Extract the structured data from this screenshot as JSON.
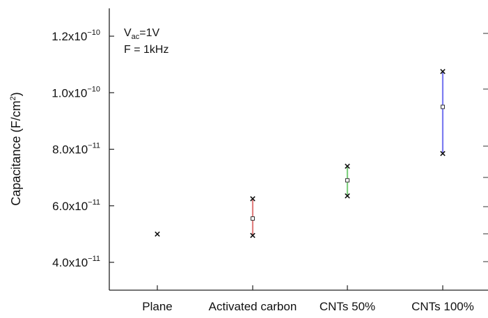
{
  "chart_data": {
    "type": "scatter",
    "title": "",
    "xlabel": "",
    "ylabel": {
      "main": "Capacitance (F/cm",
      "sup": "2",
      "tail": ")"
    },
    "ylim": [
      3e-11,
      1.3e-10
    ],
    "y_ticks": [
      {
        "value": 4e-11,
        "mant": "4.0x10",
        "exp": "−11"
      },
      {
        "value": 6e-11,
        "mant": "6.0x10",
        "exp": "−11"
      },
      {
        "value": 8e-11,
        "mant": "8.0x10",
        "exp": "−11"
      },
      {
        "value": 1e-10,
        "mant": "1.0x10",
        "exp": "−10"
      },
      {
        "value": 1.2e-10,
        "mant": "1.2x10",
        "exp": "−10"
      }
    ],
    "categories": [
      "Plane",
      "Activated carbon",
      "CNTs 50%",
      "CNTs 100%"
    ],
    "series": [
      {
        "category": "Plane",
        "mean": 5e-11,
        "min": 5e-11,
        "max": 5e-11,
        "color": "#000000"
      },
      {
        "category": "Activated carbon",
        "mean": 5.55e-11,
        "min": 4.95e-11,
        "max": 6.25e-11,
        "color": "#e08080"
      },
      {
        "category": "CNTs 50%",
        "mean": 6.9e-11,
        "min": 6.35e-11,
        "max": 7.4e-11,
        "color": "#80d080"
      },
      {
        "category": "CNTs 100%",
        "mean": 9.5e-11,
        "min": 7.85e-11,
        "max": 1.075e-10,
        "color": "#7b7bf0"
      }
    ],
    "annotations": [
      {
        "id": "vac",
        "prefix": "V",
        "sub": "ac",
        "suffix": "=1V"
      },
      {
        "id": "freq",
        "text": "F = 1kHz"
      }
    ],
    "grid": false
  }
}
